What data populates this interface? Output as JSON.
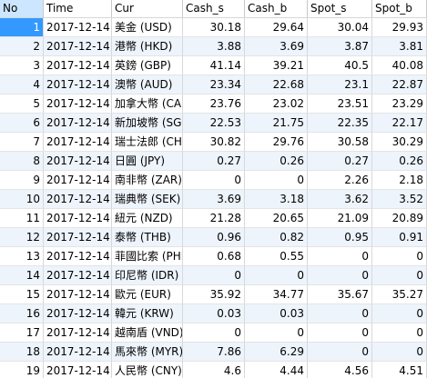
{
  "columns": [
    "No",
    "Time",
    "Cur",
    "Cash_s",
    "Cash_b",
    "Spot_s",
    "Spot_b"
  ],
  "rows": [
    [
      "1",
      "2017-12-14",
      "美金 (USD)",
      "30.18",
      "29.64",
      "30.04",
      "29.93"
    ],
    [
      "2",
      "2017-12-14",
      "港幣 (HKD)",
      "3.88",
      "3.69",
      "3.87",
      "3.81"
    ],
    [
      "3",
      "2017-12-14",
      "英鎊 (GBP)",
      "41.14",
      "39.21",
      "40.5",
      "40.08"
    ],
    [
      "4",
      "2017-12-14",
      "澳幣 (AUD)",
      "23.34",
      "22.68",
      "23.1",
      "22.87"
    ],
    [
      "5",
      "2017-12-14",
      "加拿大幣 (CAD",
      "23.76",
      "23.02",
      "23.51",
      "23.29"
    ],
    [
      "6",
      "2017-12-14",
      "新加坡幣 (SGD",
      "22.53",
      "21.75",
      "22.35",
      "22.17"
    ],
    [
      "7",
      "2017-12-14",
      "瑞士法郎 (CHF",
      "30.82",
      "29.76",
      "30.58",
      "30.29"
    ],
    [
      "8",
      "2017-12-14",
      "日圓 (JPY)",
      "0.27",
      "0.26",
      "0.27",
      "0.26"
    ],
    [
      "9",
      "2017-12-14",
      "南非幣 (ZAR)",
      "0",
      "0",
      "2.26",
      "2.18"
    ],
    [
      "10",
      "2017-12-14",
      "瑞典幣 (SEK)",
      "3.69",
      "3.18",
      "3.62",
      "3.52"
    ],
    [
      "11",
      "2017-12-14",
      "紐元 (NZD)",
      "21.28",
      "20.65",
      "21.09",
      "20.89"
    ],
    [
      "12",
      "2017-12-14",
      "泰幣 (THB)",
      "0.96",
      "0.82",
      "0.95",
      "0.91"
    ],
    [
      "13",
      "2017-12-14",
      "菲國比索 (PHP",
      "0.68",
      "0.55",
      "0",
      "0"
    ],
    [
      "14",
      "2017-12-14",
      "印尼幣 (IDR)",
      "0",
      "0",
      "0",
      "0"
    ],
    [
      "15",
      "2017-12-14",
      "歐元 (EUR)",
      "35.92",
      "34.77",
      "35.67",
      "35.27"
    ],
    [
      "16",
      "2017-12-14",
      "韓元 (KRW)",
      "0.03",
      "0.03",
      "0",
      "0"
    ],
    [
      "17",
      "2017-12-14",
      "越南盾 (VND)",
      "0",
      "0",
      "0",
      "0"
    ],
    [
      "18",
      "2017-12-14",
      "馬來幣 (MYR)",
      "7.86",
      "6.29",
      "0",
      "0"
    ],
    [
      "19",
      "2017-12-14",
      "人民幣 (CNY)",
      "4.6",
      "4.44",
      "4.56",
      "4.51"
    ]
  ],
  "colors": {
    "selected_row_number": "#3399ff",
    "alt_row": "#eef4fc",
    "header_selected": "#cce6ff"
  }
}
